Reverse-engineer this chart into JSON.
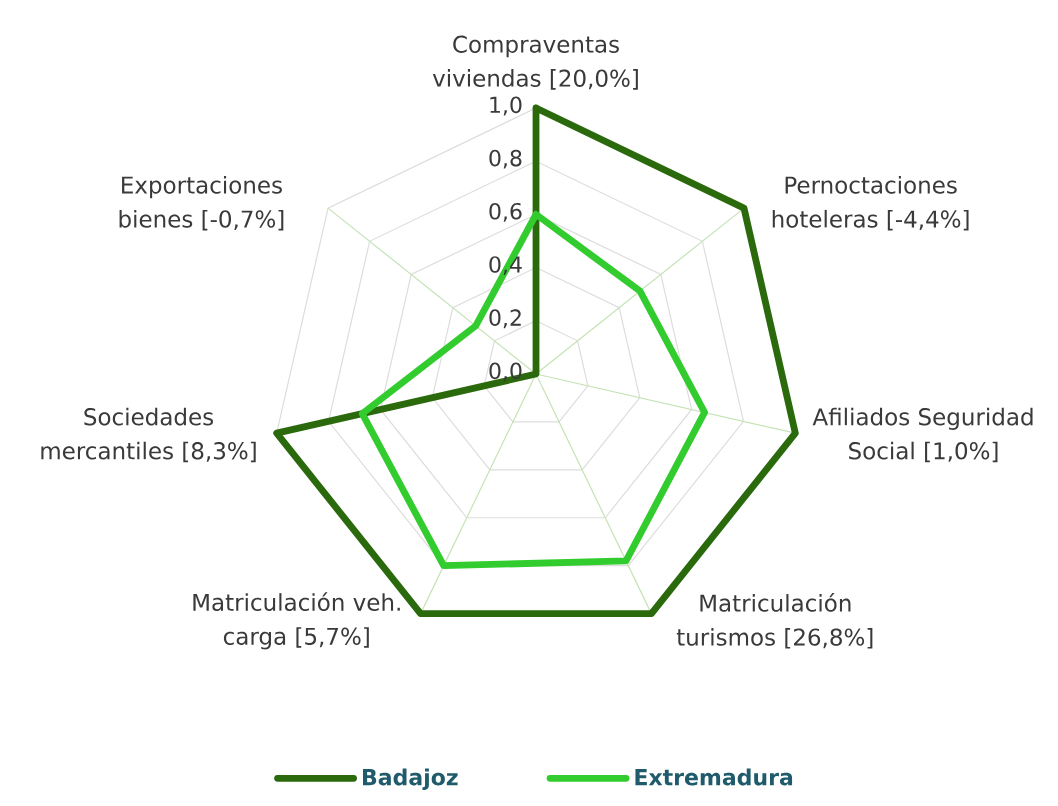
{
  "chart_data": {
    "type": "radar",
    "categories": [
      "Compraventas viviendas [20,0%]",
      "Pernoctaciones hoteleras [-4,4%]",
      "Afiliados Seguridad Social [1,0%]",
      "Matriculación turismos [26,8%]",
      "Matriculación veh. carga [5,7%]",
      "Sociedades mercantiles [8,3%]",
      "Exportaciones bienes [-0,7%]"
    ],
    "series": [
      {
        "name": "Badajoz",
        "color": "#2b6a0c",
        "values": [
          1.0,
          1.0,
          1.0,
          1.0,
          1.0,
          1.0,
          0.0
        ]
      },
      {
        "name": "Extremadura",
        "color": "#33cc2e",
        "values": [
          0.6,
          0.5,
          0.65,
          0.78,
          0.8,
          0.67,
          0.29
        ]
      }
    ],
    "ylim": [
      0,
      1
    ],
    "yticks": [
      {
        "value": 0,
        "label": "0,0"
      },
      {
        "value": 0.2,
        "label": "0,2"
      },
      {
        "value": 0.4,
        "label": "0,4"
      },
      {
        "value": 0.6,
        "label": "0,6"
      },
      {
        "value": 0.8,
        "label": "0,8"
      },
      {
        "value": 1.0,
        "label": "1,0"
      }
    ],
    "grid": true,
    "legend": "bottom"
  }
}
